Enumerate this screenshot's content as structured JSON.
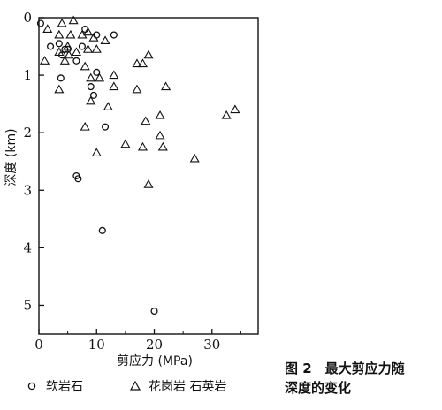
{
  "chart_data": {
    "type": "scatter",
    "xlabel": "剪应力 (MPa)",
    "ylabel": "深度 (km)",
    "xlim": [
      0,
      38
    ],
    "ylim": [
      0,
      5.5
    ],
    "y_inverted": true,
    "xticks": [
      "0",
      "10",
      "20",
      "30"
    ],
    "yticks": [
      "0",
      "1",
      "2",
      "3",
      "4",
      "5"
    ],
    "caption_line1": "图 2　最大剪应力随",
    "caption_line2": "深度的变化",
    "series": [
      {
        "name": "软岩石",
        "marker": "circle",
        "points": [
          [
            0.3,
            0.1
          ],
          [
            2,
            0.5
          ],
          [
            3.5,
            0.45
          ],
          [
            4.5,
            0.55
          ],
          [
            4,
            0.65
          ],
          [
            5,
            0.55
          ],
          [
            6.5,
            0.75
          ],
          [
            7.5,
            0.5
          ],
          [
            8,
            0.2
          ],
          [
            10,
            0.3
          ],
          [
            13,
            0.3
          ],
          [
            3.8,
            1.05
          ],
          [
            10,
            0.95
          ],
          [
            9,
            1.2
          ],
          [
            9.5,
            1.35
          ],
          [
            11.5,
            1.9
          ],
          [
            6.5,
            2.75
          ],
          [
            6.8,
            2.8
          ],
          [
            11,
            3.7
          ],
          [
            20,
            5.1
          ]
        ]
      },
      {
        "name": "花岗岩 石英岩",
        "marker": "triangle",
        "points": [
          [
            1.5,
            0.2
          ],
          [
            4,
            0.1
          ],
          [
            5.5,
            0.3
          ],
          [
            6,
            0.05
          ],
          [
            7.5,
            0.3
          ],
          [
            8.5,
            0.25
          ],
          [
            3.5,
            0.3
          ],
          [
            3.5,
            0.6
          ],
          [
            5,
            0.5
          ],
          [
            5.2,
            0.65
          ],
          [
            6.5,
            0.6
          ],
          [
            8.5,
            0.55
          ],
          [
            9.5,
            0.35
          ],
          [
            10,
            0.55
          ],
          [
            11.5,
            0.4
          ],
          [
            1,
            0.75
          ],
          [
            4.5,
            0.75
          ],
          [
            8,
            0.85
          ],
          [
            17,
            0.8
          ],
          [
            18,
            0.8
          ],
          [
            19,
            0.65
          ],
          [
            9,
            1.05
          ],
          [
            10.5,
            1.05
          ],
          [
            13,
            1.0
          ],
          [
            3.5,
            1.25
          ],
          [
            9,
            1.45
          ],
          [
            12,
            1.55
          ],
          [
            13,
            1.2
          ],
          [
            17,
            1.25
          ],
          [
            22,
            1.2
          ],
          [
            8,
            1.9
          ],
          [
            18.5,
            1.8
          ],
          [
            21,
            1.7
          ],
          [
            15,
            2.2
          ],
          [
            18,
            2.25
          ],
          [
            21,
            2.05
          ],
          [
            21.5,
            2.25
          ],
          [
            10,
            2.35
          ],
          [
            27,
            2.45
          ],
          [
            19,
            2.9
          ],
          [
            32.5,
            1.7
          ],
          [
            34,
            1.6
          ]
        ]
      }
    ]
  }
}
